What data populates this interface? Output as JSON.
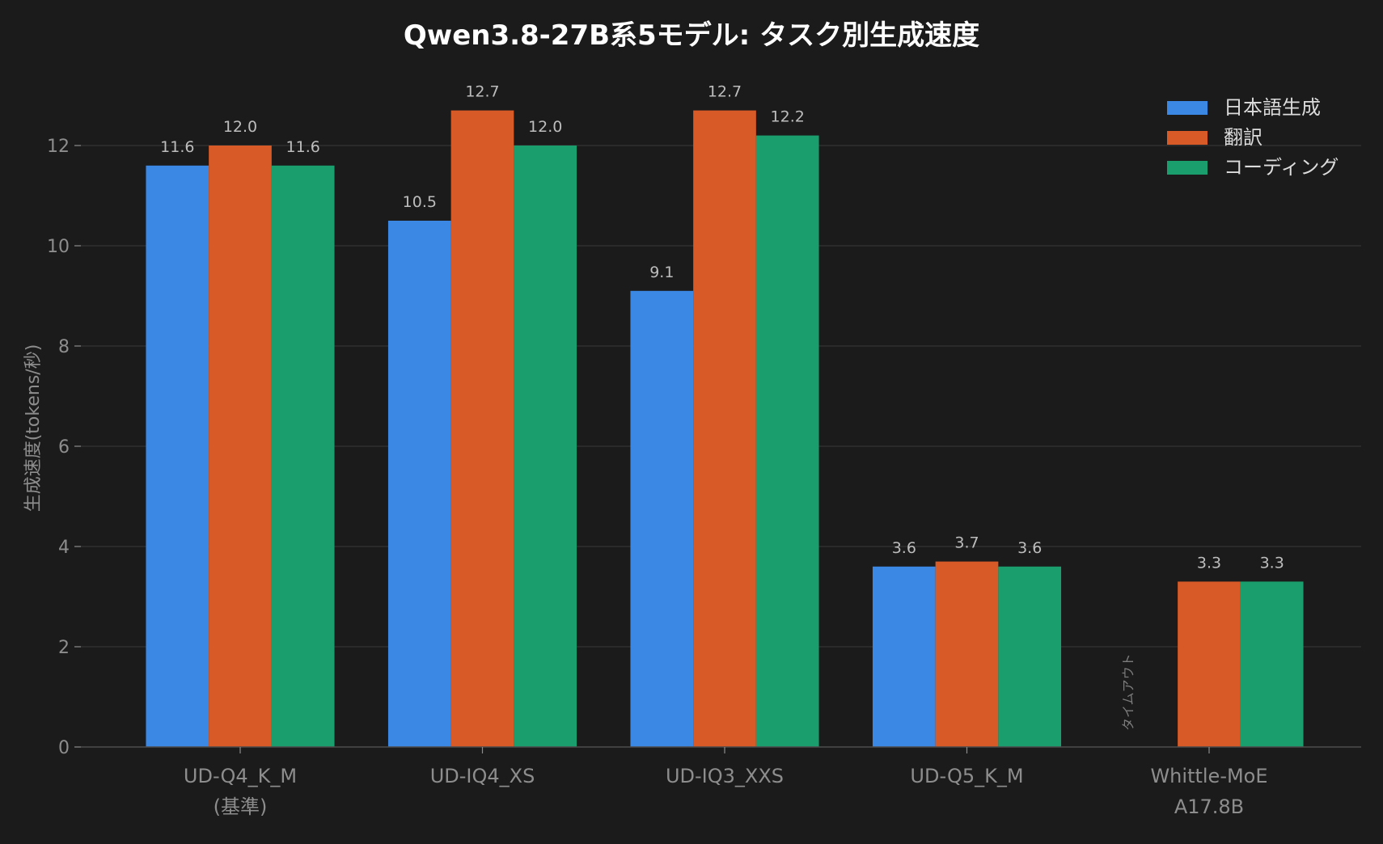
{
  "chart_data": {
    "type": "bar",
    "title": "Qwen3.8-27B系5モデル: タスク別生成速度",
    "xlabel": "",
    "ylabel": "生成速度(tokens/秒)",
    "ylim": [
      0,
      13.7
    ],
    "yticks": [
      0,
      2,
      4,
      6,
      8,
      10,
      12
    ],
    "grid": true,
    "legend_position": "top-right",
    "categories": [
      [
        "UD-Q4_K_M",
        "(基準)"
      ],
      [
        "UD-IQ4_XS"
      ],
      [
        "UD-IQ3_XXS"
      ],
      [
        "UD-Q5_K_M"
      ],
      [
        "Whittle-MoE",
        "A17.8B"
      ]
    ],
    "series": [
      {
        "name": "日本語生成",
        "color": "#3a87e4",
        "values": [
          11.6,
          10.5,
          9.1,
          3.6,
          null
        ],
        "labels": [
          "11.6",
          "10.5",
          "9.1",
          "3.6",
          null
        ]
      },
      {
        "name": "翻訳",
        "color": "#d85a27",
        "values": [
          12.0,
          12.7,
          12.7,
          3.7,
          3.3
        ],
        "labels": [
          "12.0",
          "12.7",
          "12.7",
          "3.7",
          "3.3"
        ]
      },
      {
        "name": "コーディング",
        "color": "#1a9e6e",
        "values": [
          11.6,
          12.0,
          12.2,
          3.6,
          3.3
        ],
        "labels": [
          "11.6",
          "12.0",
          "12.2",
          "3.6",
          "3.3"
        ]
      }
    ],
    "annotations": [
      {
        "category_index": 4,
        "series_index": 0,
        "text": "タイムアウト"
      }
    ]
  }
}
